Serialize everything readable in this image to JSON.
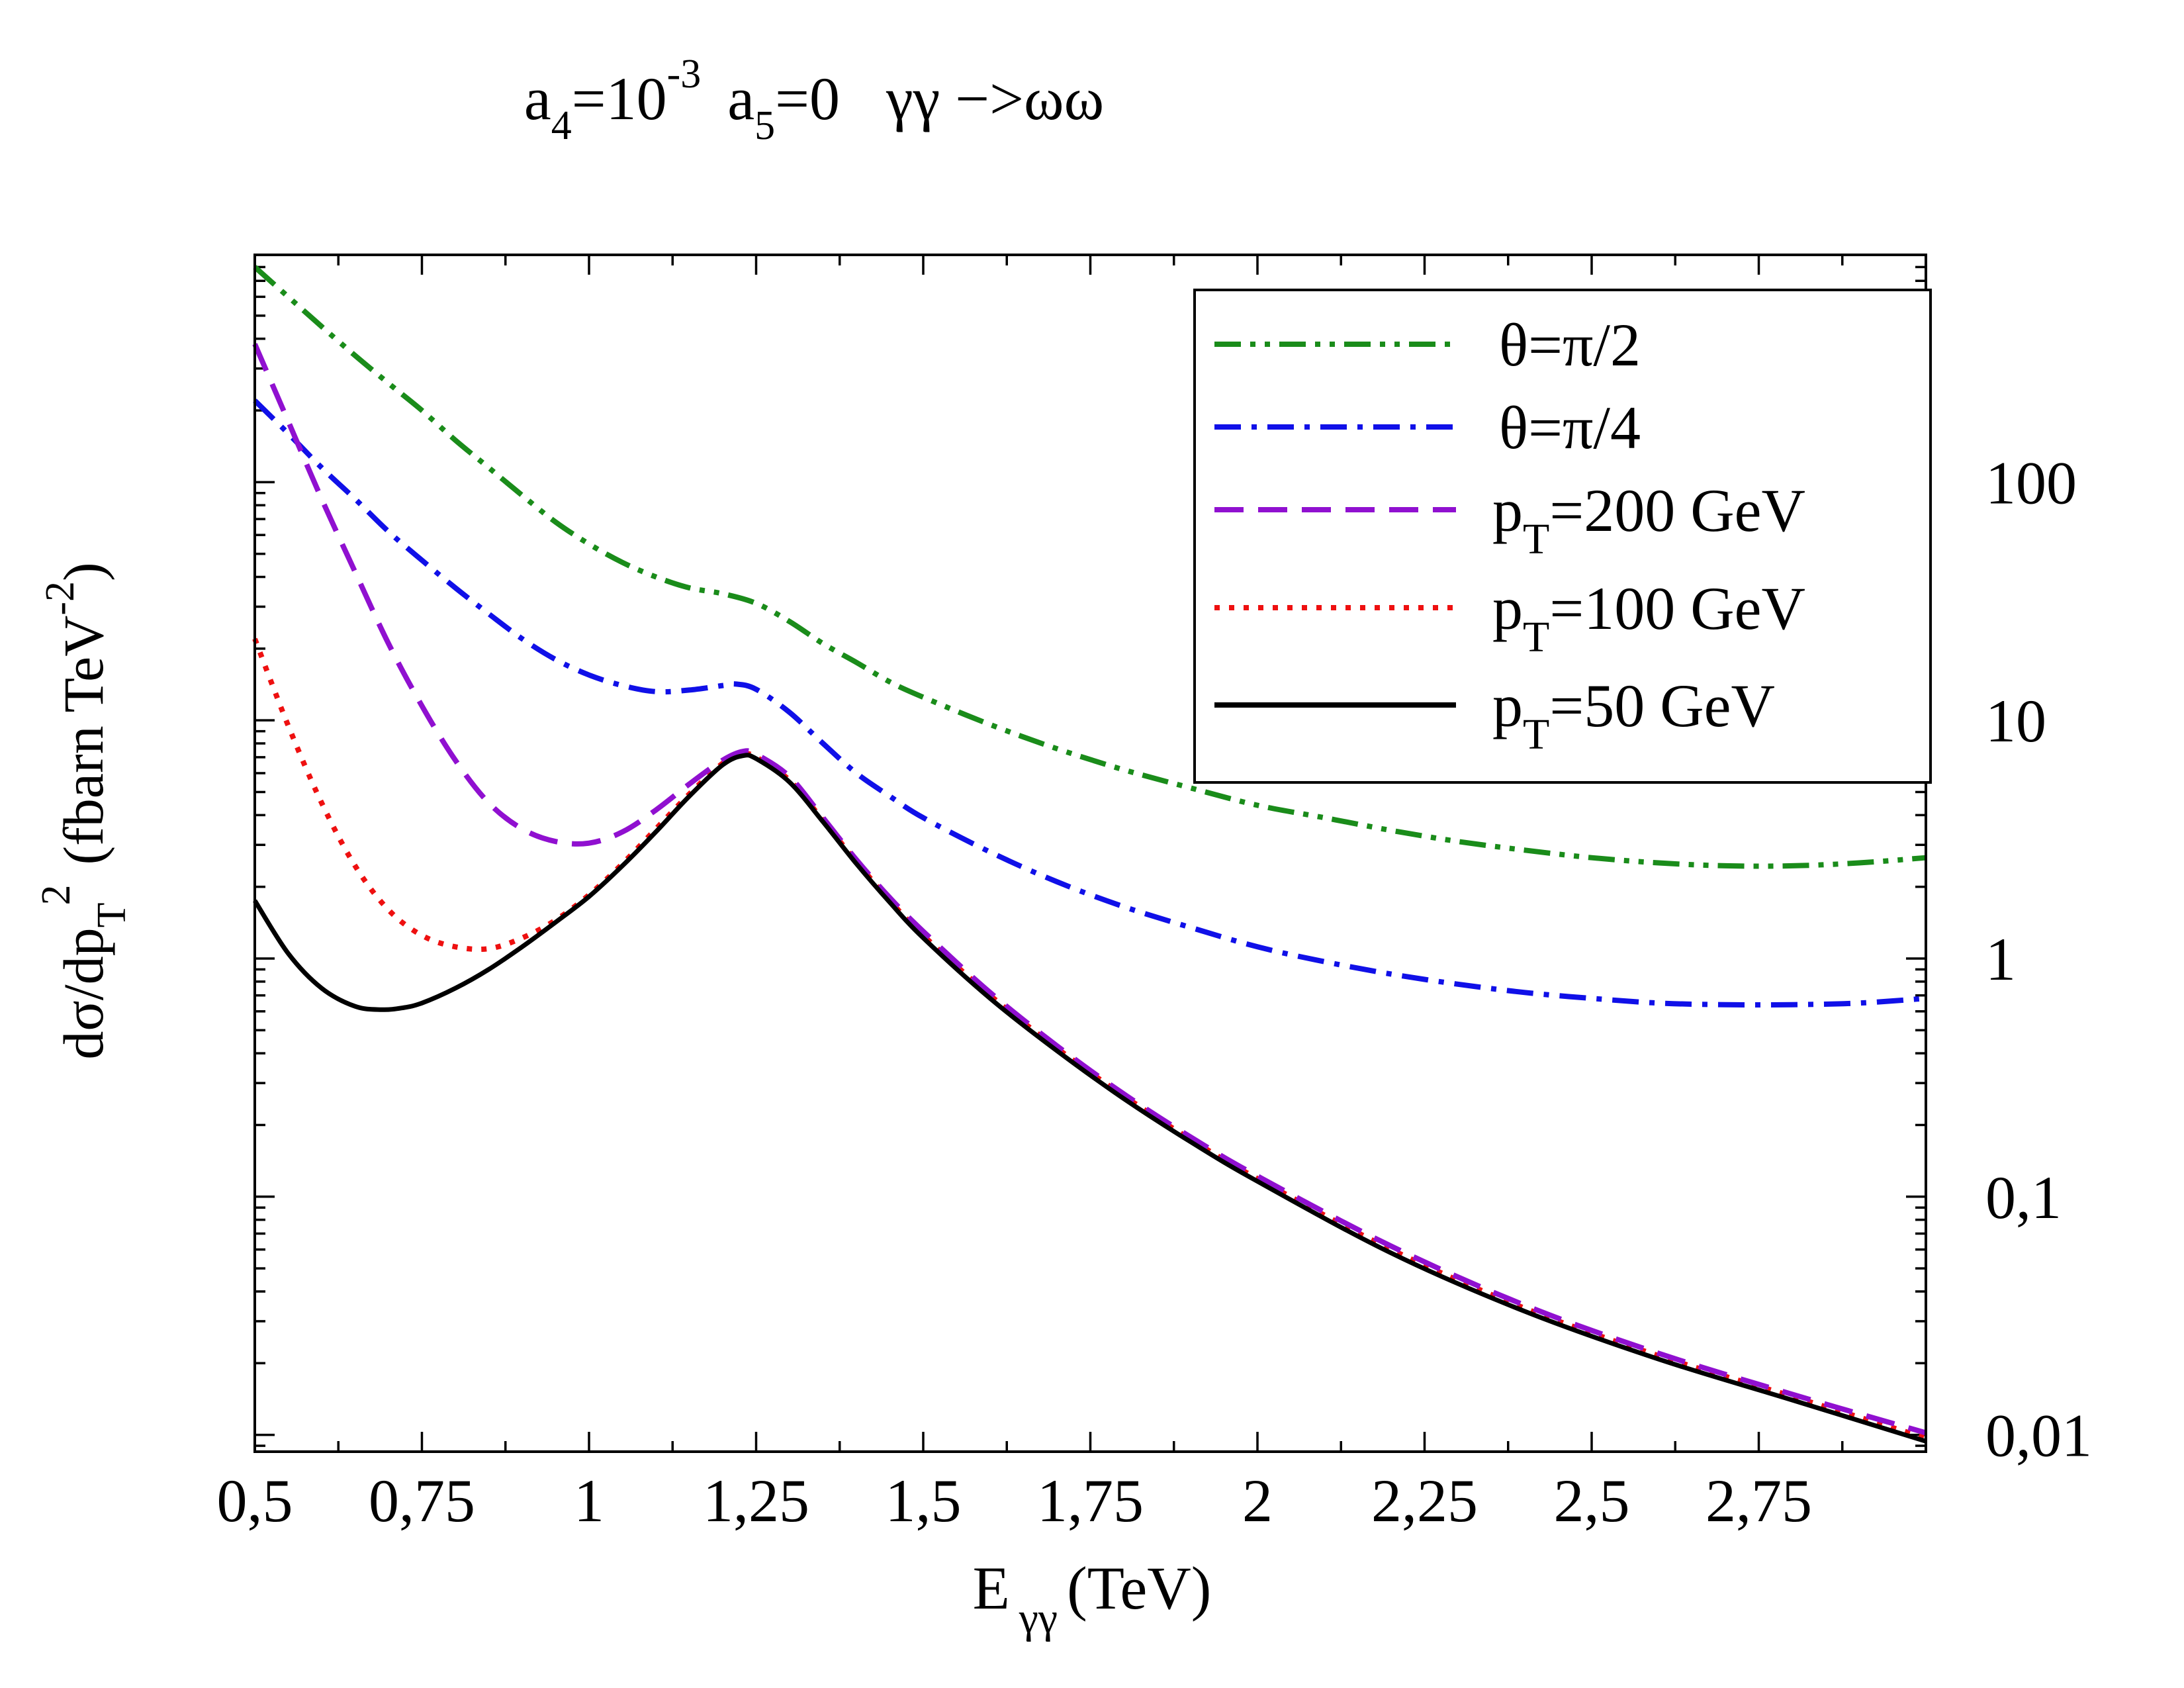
{
  "chart_data": {
    "type": "line",
    "title": "a₄=10⁻³  a₅=0   γγ −>ωω",
    "title_parts": {
      "a4": "a",
      "a4_sub": "4",
      "eq1": "=10",
      "exp1": "-3",
      "a5": "a",
      "a5_sub": "5",
      "eq2": "=0",
      "process": "γγ −>ωω"
    },
    "xlabel": "E γγ (TeV)",
    "xlabel_parts": {
      "E": "E",
      "sub": "γγ",
      "unit": "(TeV)"
    },
    "ylabel": "dσ/dpT² (fbarn TeV⁻²)",
    "ylabel_parts": {
      "main": "dσ/dp",
      "sub": "T",
      "sup2": "2",
      "unit": "(fbarn TeV",
      "unit_sup": "-2",
      "close": ")"
    },
    "y_scale": "log",
    "xlim": [
      0.5,
      3.0
    ],
    "ylim": [
      0.0085,
      900
    ],
    "x_ticks": [
      0.5,
      0.75,
      1.0,
      1.25,
      1.5,
      1.75,
      2.0,
      2.25,
      2.5,
      2.75
    ],
    "x_tick_labels": [
      "0,5",
      "0,75",
      "1",
      "1,25",
      "1,5",
      "1,75",
      "2",
      "2,25",
      "2,5",
      "2,75"
    ],
    "y_ticks": [
      0.01,
      0.1,
      1,
      10,
      100
    ],
    "y_tick_labels": [
      "0,01",
      "0,1",
      "1",
      "10",
      "100"
    ],
    "legend_position": "top-right",
    "series": [
      {
        "name": "θ=π/2",
        "color": "#1a8c1a",
        "style": "dash-dot-dot",
        "x": [
          0.5,
          0.55,
          0.6,
          0.65,
          0.7,
          0.75,
          0.8,
          0.85,
          0.9,
          0.95,
          1.0,
          1.05,
          1.1,
          1.15,
          1.2,
          1.25,
          1.3,
          1.35,
          1.4,
          1.45,
          1.5,
          1.6,
          1.7,
          1.8,
          1.9,
          2.0,
          2.1,
          2.2,
          2.3,
          2.4,
          2.5,
          2.6,
          2.7,
          2.8,
          2.9,
          3.0
        ],
        "values": [
          800,
          600,
          450,
          340,
          260,
          200,
          150,
          115,
          88,
          68,
          55,
          46,
          40,
          36,
          34,
          31,
          26,
          21,
          17.5,
          14.5,
          12.5,
          9.6,
          7.6,
          6.2,
          5.2,
          4.4,
          3.9,
          3.45,
          3.1,
          2.85,
          2.65,
          2.52,
          2.45,
          2.45,
          2.52,
          2.65
        ]
      },
      {
        "name": "θ=π/4",
        "color": "#1010e8",
        "style": "dash-dot",
        "x": [
          0.5,
          0.55,
          0.6,
          0.65,
          0.7,
          0.75,
          0.8,
          0.85,
          0.9,
          0.95,
          1.0,
          1.05,
          1.1,
          1.15,
          1.2,
          1.22,
          1.25,
          1.3,
          1.35,
          1.4,
          1.45,
          1.5,
          1.6,
          1.7,
          1.8,
          1.9,
          2.0,
          2.1,
          2.2,
          2.3,
          2.4,
          2.5,
          2.6,
          2.7,
          2.8,
          2.9,
          3.0
        ],
        "values": [
          220,
          160,
          115,
          85,
          62,
          47,
          36,
          28,
          22,
          18,
          15.5,
          14,
          13.2,
          13.4,
          14,
          14.2,
          13.5,
          10.8,
          8.0,
          6.0,
          4.8,
          3.9,
          2.8,
          2.1,
          1.65,
          1.35,
          1.12,
          0.97,
          0.86,
          0.78,
          0.72,
          0.68,
          0.65,
          0.64,
          0.64,
          0.65,
          0.68
        ]
      },
      {
        "name": "pT=200 GeV",
        "color": "#9010d0",
        "style": "dashed",
        "x": [
          0.5,
          0.55,
          0.6,
          0.65,
          0.7,
          0.75,
          0.8,
          0.85,
          0.9,
          0.95,
          1.0,
          1.05,
          1.1,
          1.15,
          1.2,
          1.23,
          1.25,
          1.3,
          1.35,
          1.4,
          1.45,
          1.5,
          1.6,
          1.7,
          1.8,
          1.9,
          2.0,
          2.2,
          2.4,
          2.6,
          2.8,
          3.0
        ],
        "values": [
          380,
          180,
          85,
          42,
          21,
          11.5,
          6.8,
          4.5,
          3.5,
          3.1,
          3.05,
          3.4,
          4.2,
          5.4,
          6.8,
          7.4,
          7.2,
          5.8,
          3.9,
          2.6,
          1.8,
          1.3,
          0.72,
          0.43,
          0.27,
          0.178,
          0.122,
          0.062,
          0.035,
          0.022,
          0.0148,
          0.0102
        ]
      },
      {
        "name": "pT=100 GeV",
        "color": "#ee1010",
        "style": "dotted",
        "x": [
          0.5,
          0.55,
          0.6,
          0.65,
          0.7,
          0.75,
          0.8,
          0.85,
          0.9,
          0.95,
          1.0,
          1.05,
          1.1,
          1.15,
          1.2,
          1.23,
          1.25,
          1.3,
          1.35,
          1.4,
          1.45,
          1.5,
          1.6,
          1.7,
          1.8,
          1.9,
          2.0,
          2.2,
          2.4,
          2.6,
          2.8,
          3.0
        ],
        "values": [
          22,
          9.5,
          4.5,
          2.45,
          1.6,
          1.25,
          1.12,
          1.1,
          1.22,
          1.45,
          1.85,
          2.5,
          3.5,
          4.9,
          6.6,
          7.2,
          7.0,
          5.6,
          3.8,
          2.55,
          1.75,
          1.25,
          0.7,
          0.42,
          0.265,
          0.174,
          0.119,
          0.06,
          0.034,
          0.0215,
          0.0145,
          0.0097
        ]
      },
      {
        "name": "pT=50 GeV",
        "color": "#000000",
        "style": "solid",
        "x": [
          0.5,
          0.55,
          0.6,
          0.65,
          0.69,
          0.72,
          0.75,
          0.8,
          0.85,
          0.9,
          0.95,
          1.0,
          1.05,
          1.1,
          1.15,
          1.2,
          1.23,
          1.25,
          1.3,
          1.35,
          1.4,
          1.45,
          1.5,
          1.6,
          1.7,
          1.8,
          1.9,
          2.0,
          2.2,
          2.4,
          2.6,
          2.8,
          3.0
        ],
        "values": [
          1.75,
          1.05,
          0.75,
          0.63,
          0.61,
          0.62,
          0.65,
          0.75,
          0.9,
          1.12,
          1.42,
          1.82,
          2.45,
          3.4,
          4.8,
          6.5,
          7.1,
          6.9,
          5.5,
          3.75,
          2.5,
          1.72,
          1.22,
          0.68,
          0.41,
          0.258,
          0.17,
          0.116,
          0.058,
          0.033,
          0.0208,
          0.014,
          0.0094
        ]
      }
    ]
  }
}
